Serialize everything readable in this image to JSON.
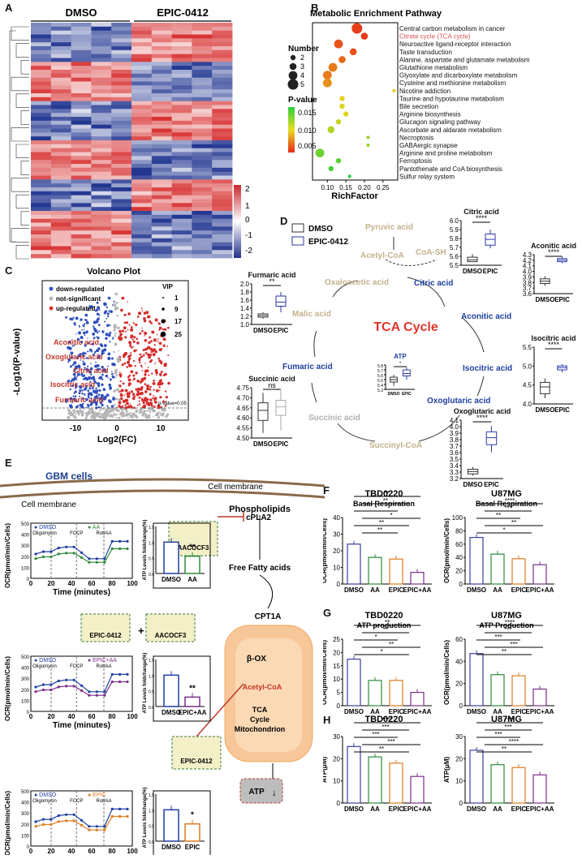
{
  "panels": {
    "A": "A",
    "B": "B",
    "C": "C",
    "D": "D",
    "E": "E",
    "F": "F",
    "G": "G",
    "H": "H"
  },
  "heatmap": {
    "groups": [
      "DMSO",
      "EPIC-0412"
    ],
    "colorbar_ticks": [
      "2",
      "1",
      "0",
      "-1",
      "-2"
    ],
    "colors": {
      "high": "#d7302f",
      "mid": "#ffffff",
      "low": "#2b3a8f"
    }
  },
  "enrichment": {
    "title": "Metabolic Enrichment Pathway",
    "xlabel": "RichFactor",
    "xticks": [
      "0.10",
      "0.15",
      "0.20",
      "0.25"
    ],
    "size_legend_title": "Number",
    "size_legend": [
      "2",
      "3",
      "4",
      "5"
    ],
    "color_legend_title": "P-value",
    "color_legend": [
      "0.015",
      "0.010",
      "0.005"
    ],
    "highlight_color": "#d9534f",
    "pathways": [
      {
        "name": "Central carbon metabolism in cancer",
        "rich": 0.18,
        "num": 5,
        "p": 0.001
      },
      {
        "name": "Citrate cycle (TCA cycle)",
        "rich": 0.2,
        "num": 3,
        "p": 0.001,
        "highlight": true
      },
      {
        "name": "Neuroactive ligand-receptor interaction",
        "rich": 0.13,
        "num": 4,
        "p": 0.002
      },
      {
        "name": "Taste transduction",
        "rich": 0.17,
        "num": 3,
        "p": 0.002
      },
      {
        "name": "Alanine, aspartate and glutamate metabolism",
        "rich": 0.14,
        "num": 3,
        "p": 0.003
      },
      {
        "name": "Glutathione metabolism",
        "rich": 0.115,
        "num": 4,
        "p": 0.004
      },
      {
        "name": "Glyoxylate and dicarboxylate metabolism",
        "rich": 0.1,
        "num": 4,
        "p": 0.004
      },
      {
        "name": "Cysteine and methionine metabolism",
        "rich": 0.1,
        "num": 4,
        "p": 0.005
      },
      {
        "name": "Nicotine addiction",
        "rich": 0.28,
        "num": 1,
        "p": 0.008
      },
      {
        "name": "Taurine and hypotaurine metabolism",
        "rich": 0.14,
        "num": 2,
        "p": 0.008
      },
      {
        "name": "Bile secretion",
        "rich": 0.14,
        "num": 2,
        "p": 0.009
      },
      {
        "name": "Arginine biosynthesis",
        "rich": 0.15,
        "num": 2,
        "p": 0.009
      },
      {
        "name": "Glucagon signaling pathway",
        "rich": 0.13,
        "num": 2,
        "p": 0.01
      },
      {
        "name": "Ascorbate and aldarate metabolism",
        "rich": 0.11,
        "num": 3,
        "p": 0.011
      },
      {
        "name": "Necroptosis",
        "rich": 0.21,
        "num": 1,
        "p": 0.012
      },
      {
        "name": "GABAergic synapse",
        "rich": 0.21,
        "num": 1,
        "p": 0.012
      },
      {
        "name": "Arginine and proline metabolism",
        "rich": 0.08,
        "num": 4,
        "p": 0.014
      },
      {
        "name": "Ferroptosis",
        "rich": 0.13,
        "num": 2,
        "p": 0.015
      },
      {
        "name": "Pantothenate and CoA biosynthesis",
        "rich": 0.11,
        "num": 2,
        "p": 0.016
      },
      {
        "name": "Sulfur relay system",
        "rich": 0.16,
        "num": 1,
        "p": 0.017
      }
    ]
  },
  "volcano": {
    "title": "Volcano Plot",
    "xlabel": "Log2(FC)",
    "ylabel": "-Log10(P-value)",
    "xticks": [
      "-10",
      "0",
      "10"
    ],
    "legend": [
      "down-regulated",
      "not-significant",
      "up-regulated"
    ],
    "vip_title": "VIP",
    "vip": [
      "1",
      "9",
      "17",
      "25"
    ],
    "labels": [
      "Aconitic acid",
      "Oxoglutaric acid",
      "Citric acid",
      "Isocitric acid",
      "Furmaric acid"
    ],
    "threshold": "p-value=0.05",
    "colors": {
      "down": "#2e4fbf",
      "ns": "#b5b5b5",
      "up": "#d62b2b"
    }
  },
  "tca": {
    "legend": [
      "DMSO",
      "EPIC-0412"
    ],
    "center": "TCA Cycle",
    "metabolites": [
      "Pyruvic acid",
      "Acetyl-CoA",
      "CoA-SH",
      "Citric acid",
      "Aconitic acid",
      "Isocitric acid",
      "Oxoglutaric acid",
      "Succinyl-CoA",
      "Succinic acid",
      "Fumaric acid",
      "Malic acid",
      "Oxaloacetic acid"
    ],
    "boxes": [
      {
        "title": "Citric acid",
        "sig": "****",
        "ticks": [
          "6.0",
          "5.9",
          "5.8",
          "5.7",
          "5.6",
          "5.5"
        ],
        "cats": [
          "DMSO",
          "EPIC"
        ]
      },
      {
        "title": "Aconitic acid",
        "sig": "****",
        "ticks": [
          "4.3",
          "4.2",
          "4.1",
          "4.0",
          "3.9",
          "3.8",
          "3.7",
          "3.6"
        ],
        "cats": [
          "DMSO",
          "EPIC"
        ]
      },
      {
        "title": "Isocitric acid",
        "sig": "****",
        "ticks": [
          "5.5",
          "5.0",
          "4.5",
          "4.0"
        ],
        "cats": [
          "DMSO",
          "EPIC"
        ]
      },
      {
        "title": "Oxoglutaric acid",
        "sig": "****",
        "ticks": [
          "4.1",
          "4.0",
          "3.9",
          "3.8",
          "3.7",
          "3.6",
          "3.5",
          "3.4",
          "3.3",
          "3.2"
        ],
        "cats": [
          "DMSO",
          "EPIC"
        ]
      },
      {
        "title": "Furmaric acid",
        "sig": "**",
        "ticks": [
          "2.0",
          "1.8",
          "1.6",
          "1.4",
          "1.2",
          "1.0"
        ],
        "cats": [
          "DMSO",
          "EPIC"
        ]
      },
      {
        "title": "Succinic acid",
        "sig": "ns",
        "ticks": [
          "4.75",
          "4.70",
          "4.65",
          "4.60",
          "4.55",
          "4.50"
        ],
        "cats": [
          "DMSO",
          "EPIC"
        ]
      },
      {
        "title": "ATP",
        "sig": "*",
        "ticks": [
          "5.8",
          "5.7",
          "5.6",
          "5.5",
          "5.4",
          "5.3"
        ],
        "cats": [
          "DMSO",
          "EPIC"
        ]
      }
    ]
  },
  "panelE": {
    "gbm": "GBM cells",
    "membrane": "Cell membrane",
    "phospholipids": "Phospholipids",
    "cpla2": "cPLA2",
    "ffa": "Free Fatty acids",
    "cpt1a": "CPT1A",
    "mito": [
      "β-OX",
      "Acetyl-CoA",
      "TCA",
      "Cycle",
      "Mitochondrion"
    ],
    "atp": "ATP",
    "drugs": [
      "AACOCF3",
      "EPIC-0412"
    ],
    "plus": "+",
    "ocr_ylabel": "OCR(pmol/min/Cells)",
    "xlabel": "Time (minutes)",
    "xticks": [
      "0",
      "20",
      "40",
      "60",
      "80",
      "100"
    ],
    "yticks": [
      "500",
      "400",
      "300",
      "200",
      "100",
      "0"
    ],
    "injections": [
      "Oligomycin",
      "FCCP",
      "Rot/AA"
    ],
    "atp_ylabel": "ATP Levels foldchange(%)",
    "atp_yticks": [
      "1.5",
      "1.0",
      "0.5",
      "0.0"
    ],
    "rows": [
      {
        "legend": [
          "DMSO",
          "AA"
        ],
        "cats": [
          "DMSO",
          "AA"
        ],
        "sig": "**",
        "vals": [
          1.0,
          0.55
        ],
        "c2": "#2f8a3a"
      },
      {
        "legend": [
          "DMSO",
          "EPIC+AA"
        ],
        "cats": [
          "DMSO",
          "EPIC+AA"
        ],
        "sig": "**",
        "vals": [
          1.0,
          0.3
        ],
        "c2": "#7a2e8a"
      },
      {
        "legend": [
          "DMSO",
          "EPIC"
        ],
        "cats": [
          "DMSO",
          "EPIC"
        ],
        "sig": "*",
        "vals": [
          1.0,
          0.55
        ],
        "c2": "#e07b20"
      }
    ]
  },
  "bars": {
    "cats": [
      "DMSO",
      "AA",
      "EPIC",
      "EPIC+AA"
    ],
    "colors": [
      "#3b3f9c",
      "#2f8a3a",
      "#e07b20",
      "#7a2e8a"
    ],
    "F": [
      {
        "title": "TBD0220",
        "sub": "Basal Respiration",
        "ylabel": "OCR(pmol/min/Cells)",
        "yticks": [
          "40",
          "30",
          "20",
          "10",
          "0"
        ],
        "values": [
          24,
          16,
          15,
          7
        ],
        "sigs": [
          "**",
          "**",
          "*",
          "*",
          "**",
          "**"
        ]
      },
      {
        "title": "U87MG",
        "sub": "Basal Respiration",
        "ylabel": "OCR(pmol/min/Cells)",
        "yticks": [
          "100",
          "80",
          "60",
          "40",
          "20",
          "0"
        ],
        "values": [
          70,
          45,
          38,
          29
        ],
        "sigs": [
          "****",
          "***",
          "**",
          "**",
          "*"
        ]
      }
    ],
    "G": [
      {
        "title": "TBD0220",
        "sub": "ATP production",
        "ylabel": "OCR(pmol/min/Cells)",
        "yticks": [
          "25",
          "20",
          "15",
          "10",
          "5",
          "0"
        ],
        "values": [
          17.5,
          9.5,
          9.5,
          5
        ],
        "sigs": [
          "**",
          "**",
          "*",
          "**",
          "*"
        ]
      },
      {
        "title": "U87MG",
        "sub": "ATP Production",
        "ylabel": "OCR(pmol/min/Cells)",
        "yticks": [
          "60",
          "40",
          "20",
          "0"
        ],
        "values": [
          47,
          28,
          27,
          15
        ],
        "sigs": [
          "****",
          "***",
          "***",
          "***",
          "**"
        ]
      }
    ],
    "H": [
      {
        "title": "TBD0220",
        "sub": "",
        "ylabel": "ATP(μM)",
        "yticks": [
          "30",
          "20",
          "10",
          "0"
        ],
        "values": [
          25.5,
          20.8,
          18,
          12
        ],
        "sigs": [
          "****",
          "***",
          "***",
          "***",
          "**"
        ]
      },
      {
        "title": "U87MG",
        "sub": "",
        "ylabel": "ATP(μM)",
        "yticks": [
          "30",
          "20",
          "10",
          "0"
        ],
        "values": [
          23.8,
          17.3,
          16,
          12.7
        ],
        "sigs": [
          "****",
          "***",
          "***",
          "****",
          "**"
        ]
      }
    ]
  }
}
